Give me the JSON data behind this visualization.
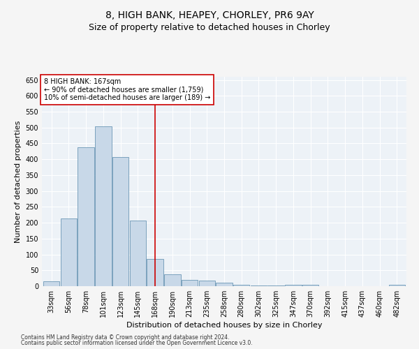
{
  "title": "8, HIGH BANK, HEAPEY, CHORLEY, PR6 9AY",
  "subtitle": "Size of property relative to detached houses in Chorley",
  "xlabel": "Distribution of detached houses by size in Chorley",
  "ylabel": "Number of detached properties",
  "footnote1": "Contains HM Land Registry data © Crown copyright and database right 2024.",
  "footnote2": "Contains public sector information licensed under the Open Government Licence v3.0.",
  "categories": [
    "33sqm",
    "56sqm",
    "78sqm",
    "101sqm",
    "123sqm",
    "145sqm",
    "168sqm",
    "190sqm",
    "213sqm",
    "235sqm",
    "258sqm",
    "280sqm",
    "302sqm",
    "325sqm",
    "347sqm",
    "370sqm",
    "392sqm",
    "415sqm",
    "437sqm",
    "460sqm",
    "482sqm"
  ],
  "values": [
    15,
    213,
    437,
    503,
    407,
    207,
    85,
    38,
    20,
    18,
    10,
    5,
    3,
    2,
    5,
    5,
    0,
    0,
    0,
    0,
    4
  ],
  "bar_color": "#c8d8e8",
  "bar_edge_color": "#5588aa",
  "vline_x": 6.0,
  "vline_color": "#cc0000",
  "annotation_text": "8 HIGH BANK: 167sqm\n← 90% of detached houses are smaller (1,759)\n10% of semi-detached houses are larger (189) →",
  "annotation_box_color": "#ffffff",
  "annotation_box_edge": "#cc0000",
  "ylim": [
    0,
    660
  ],
  "yticks": [
    0,
    50,
    100,
    150,
    200,
    250,
    300,
    350,
    400,
    450,
    500,
    550,
    600,
    650
  ],
  "bg_color": "#edf2f7",
  "grid_color": "#ffffff",
  "fig_bg_color": "#f5f5f5",
  "title_fontsize": 10,
  "subtitle_fontsize": 9,
  "tick_fontsize": 7,
  "ylabel_fontsize": 8,
  "xlabel_fontsize": 8,
  "annotation_fontsize": 7,
  "footnote_fontsize": 5.5
}
